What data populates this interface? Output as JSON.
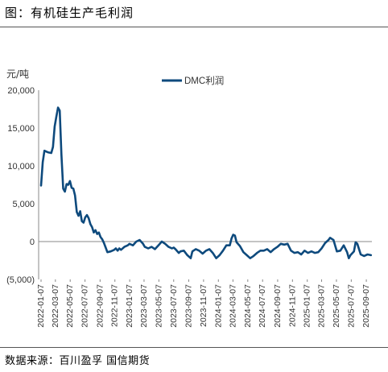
{
  "figure_title": "图：有机硅生产毛利润",
  "source_note": "数据来源：百川盈孚 国信期货",
  "colors": {
    "series": "#0e4a7d",
    "negative_label": "#cc0000",
    "axis": "#888888"
  },
  "chart_data": {
    "type": "line",
    "title": "",
    "ylabel": "元/吨",
    "xlabel": "",
    "ylim": [
      -5000,
      20000
    ],
    "yticks": [
      20000,
      15000,
      10000,
      5000,
      0,
      -5000
    ],
    "ytick_labels": [
      "20,000",
      "15,000",
      "10,000",
      "5,000",
      "0",
      "(5,000)"
    ],
    "x_ticks": [
      "2022-01-07",
      "2022-03-07",
      "2022-05-07",
      "2022-07-07",
      "2022-09-07",
      "2022-11-07",
      "2023-01-07",
      "2023-03-07",
      "2023-05-07",
      "2023-07-07",
      "2023-09-07",
      "2023-11-07",
      "2024-01-07",
      "2024-03-07",
      "2024-05-07",
      "2024-07-07",
      "2024-09-07",
      "2024-11-07",
      "2025-01-07",
      "2025-03-07",
      "2025-05-07",
      "2025-07-07",
      "2025-09-07"
    ],
    "x_range": [
      "2022-01-07",
      "2025-09-30"
    ],
    "legend_position": "top-center",
    "grid": false,
    "series": [
      {
        "name": "DMC利润",
        "points": [
          [
            "2022-01-07",
            7400
          ],
          [
            "2022-01-14",
            10500
          ],
          [
            "2022-01-21",
            12000
          ],
          [
            "2022-02-04",
            11800
          ],
          [
            "2022-02-18",
            11700
          ],
          [
            "2022-02-25",
            12500
          ],
          [
            "2022-03-04",
            15200
          ],
          [
            "2022-03-11",
            16500
          ],
          [
            "2022-03-18",
            17700
          ],
          [
            "2022-03-25",
            17300
          ],
          [
            "2022-04-01",
            11500
          ],
          [
            "2022-04-08",
            7000
          ],
          [
            "2022-04-15",
            6600
          ],
          [
            "2022-04-22",
            7600
          ],
          [
            "2022-04-29",
            7500
          ],
          [
            "2022-05-06",
            8000
          ],
          [
            "2022-05-13",
            7100
          ],
          [
            "2022-05-20",
            7000
          ],
          [
            "2022-05-27",
            6100
          ],
          [
            "2022-06-03",
            3900
          ],
          [
            "2022-06-10",
            3400
          ],
          [
            "2022-06-17",
            4000
          ],
          [
            "2022-06-24",
            2700
          ],
          [
            "2022-07-01",
            2500
          ],
          [
            "2022-07-08",
            3200
          ],
          [
            "2022-07-15",
            3500
          ],
          [
            "2022-07-22",
            3100
          ],
          [
            "2022-07-29",
            2300
          ],
          [
            "2022-08-05",
            1900
          ],
          [
            "2022-08-12",
            1200
          ],
          [
            "2022-08-19",
            1500
          ],
          [
            "2022-08-26",
            1000
          ],
          [
            "2022-09-02",
            1200
          ],
          [
            "2022-09-09",
            600
          ],
          [
            "2022-09-16",
            300
          ],
          [
            "2022-09-23",
            -200
          ],
          [
            "2022-09-30",
            -800
          ],
          [
            "2022-10-07",
            -1400
          ],
          [
            "2022-10-21",
            -1300
          ],
          [
            "2022-11-04",
            -1100
          ],
          [
            "2022-11-11",
            -900
          ],
          [
            "2022-11-18",
            -1200
          ],
          [
            "2022-11-25",
            -900
          ],
          [
            "2022-12-02",
            -1100
          ],
          [
            "2022-12-16",
            -700
          ],
          [
            "2022-12-30",
            -500
          ],
          [
            "2023-01-06",
            -300
          ],
          [
            "2023-01-20",
            -500
          ],
          [
            "2023-02-03",
            0
          ],
          [
            "2023-02-17",
            200
          ],
          [
            "2023-03-03",
            -300
          ],
          [
            "2023-03-10",
            -700
          ],
          [
            "2023-03-24",
            -900
          ],
          [
            "2023-04-07",
            -700
          ],
          [
            "2023-04-21",
            -1000
          ],
          [
            "2023-05-05",
            -500
          ],
          [
            "2023-05-19",
            0
          ],
          [
            "2023-06-02",
            -300
          ],
          [
            "2023-06-16",
            -700
          ],
          [
            "2023-06-30",
            -900
          ],
          [
            "2023-07-07",
            -800
          ],
          [
            "2023-07-14",
            -1000
          ],
          [
            "2023-07-28",
            -1500
          ],
          [
            "2023-08-04",
            -1300
          ],
          [
            "2023-08-18",
            -1200
          ],
          [
            "2023-09-01",
            -1800
          ],
          [
            "2023-09-15",
            -2200
          ],
          [
            "2023-09-22",
            -1300
          ],
          [
            "2023-10-06",
            -1000
          ],
          [
            "2023-10-20",
            -1200
          ],
          [
            "2023-11-03",
            -1600
          ],
          [
            "2023-11-17",
            -1200
          ],
          [
            "2023-12-01",
            -1000
          ],
          [
            "2023-12-15",
            -1500
          ],
          [
            "2023-12-29",
            -2200
          ],
          [
            "2024-01-12",
            -1800
          ],
          [
            "2024-01-26",
            -1200
          ],
          [
            "2024-02-09",
            -500
          ],
          [
            "2024-02-23",
            -500
          ],
          [
            "2024-03-01",
            400
          ],
          [
            "2024-03-08",
            900
          ],
          [
            "2024-03-15",
            800
          ],
          [
            "2024-03-22",
            -100
          ],
          [
            "2024-04-05",
            -600
          ],
          [
            "2024-04-19",
            -1400
          ],
          [
            "2024-05-03",
            -1800
          ],
          [
            "2024-05-17",
            -2200
          ],
          [
            "2024-05-31",
            -1900
          ],
          [
            "2024-06-14",
            -1500
          ],
          [
            "2024-06-28",
            -1200
          ],
          [
            "2024-07-12",
            -1200
          ],
          [
            "2024-07-26",
            -1000
          ],
          [
            "2024-08-09",
            -1400
          ],
          [
            "2024-08-23",
            -1000
          ],
          [
            "2024-09-06",
            -700
          ],
          [
            "2024-09-20",
            -300
          ],
          [
            "2024-10-04",
            -400
          ],
          [
            "2024-10-18",
            -300
          ],
          [
            "2024-11-01",
            -1200
          ],
          [
            "2024-11-15",
            -1500
          ],
          [
            "2024-11-29",
            -1400
          ],
          [
            "2024-12-13",
            -1700
          ],
          [
            "2024-12-27",
            -1200
          ],
          [
            "2025-01-10",
            -1500
          ],
          [
            "2025-01-24",
            -1300
          ],
          [
            "2025-02-07",
            -1500
          ],
          [
            "2025-02-21",
            -1400
          ],
          [
            "2025-03-07",
            -900
          ],
          [
            "2025-03-21",
            -200
          ],
          [
            "2025-04-04",
            200
          ],
          [
            "2025-04-11",
            500
          ],
          [
            "2025-04-25",
            200
          ],
          [
            "2025-05-09",
            -1300
          ],
          [
            "2025-05-23",
            -1200
          ],
          [
            "2025-06-06",
            -500
          ],
          [
            "2025-06-20",
            -1400
          ],
          [
            "2025-06-27",
            -2200
          ],
          [
            "2025-07-04",
            -1800
          ],
          [
            "2025-07-18",
            -1300
          ],
          [
            "2025-07-25",
            -100
          ],
          [
            "2025-08-01",
            -300
          ],
          [
            "2025-08-15",
            -1700
          ],
          [
            "2025-08-29",
            -1900
          ],
          [
            "2025-09-12",
            -1700
          ],
          [
            "2025-09-26",
            -1800
          ]
        ]
      }
    ]
  }
}
